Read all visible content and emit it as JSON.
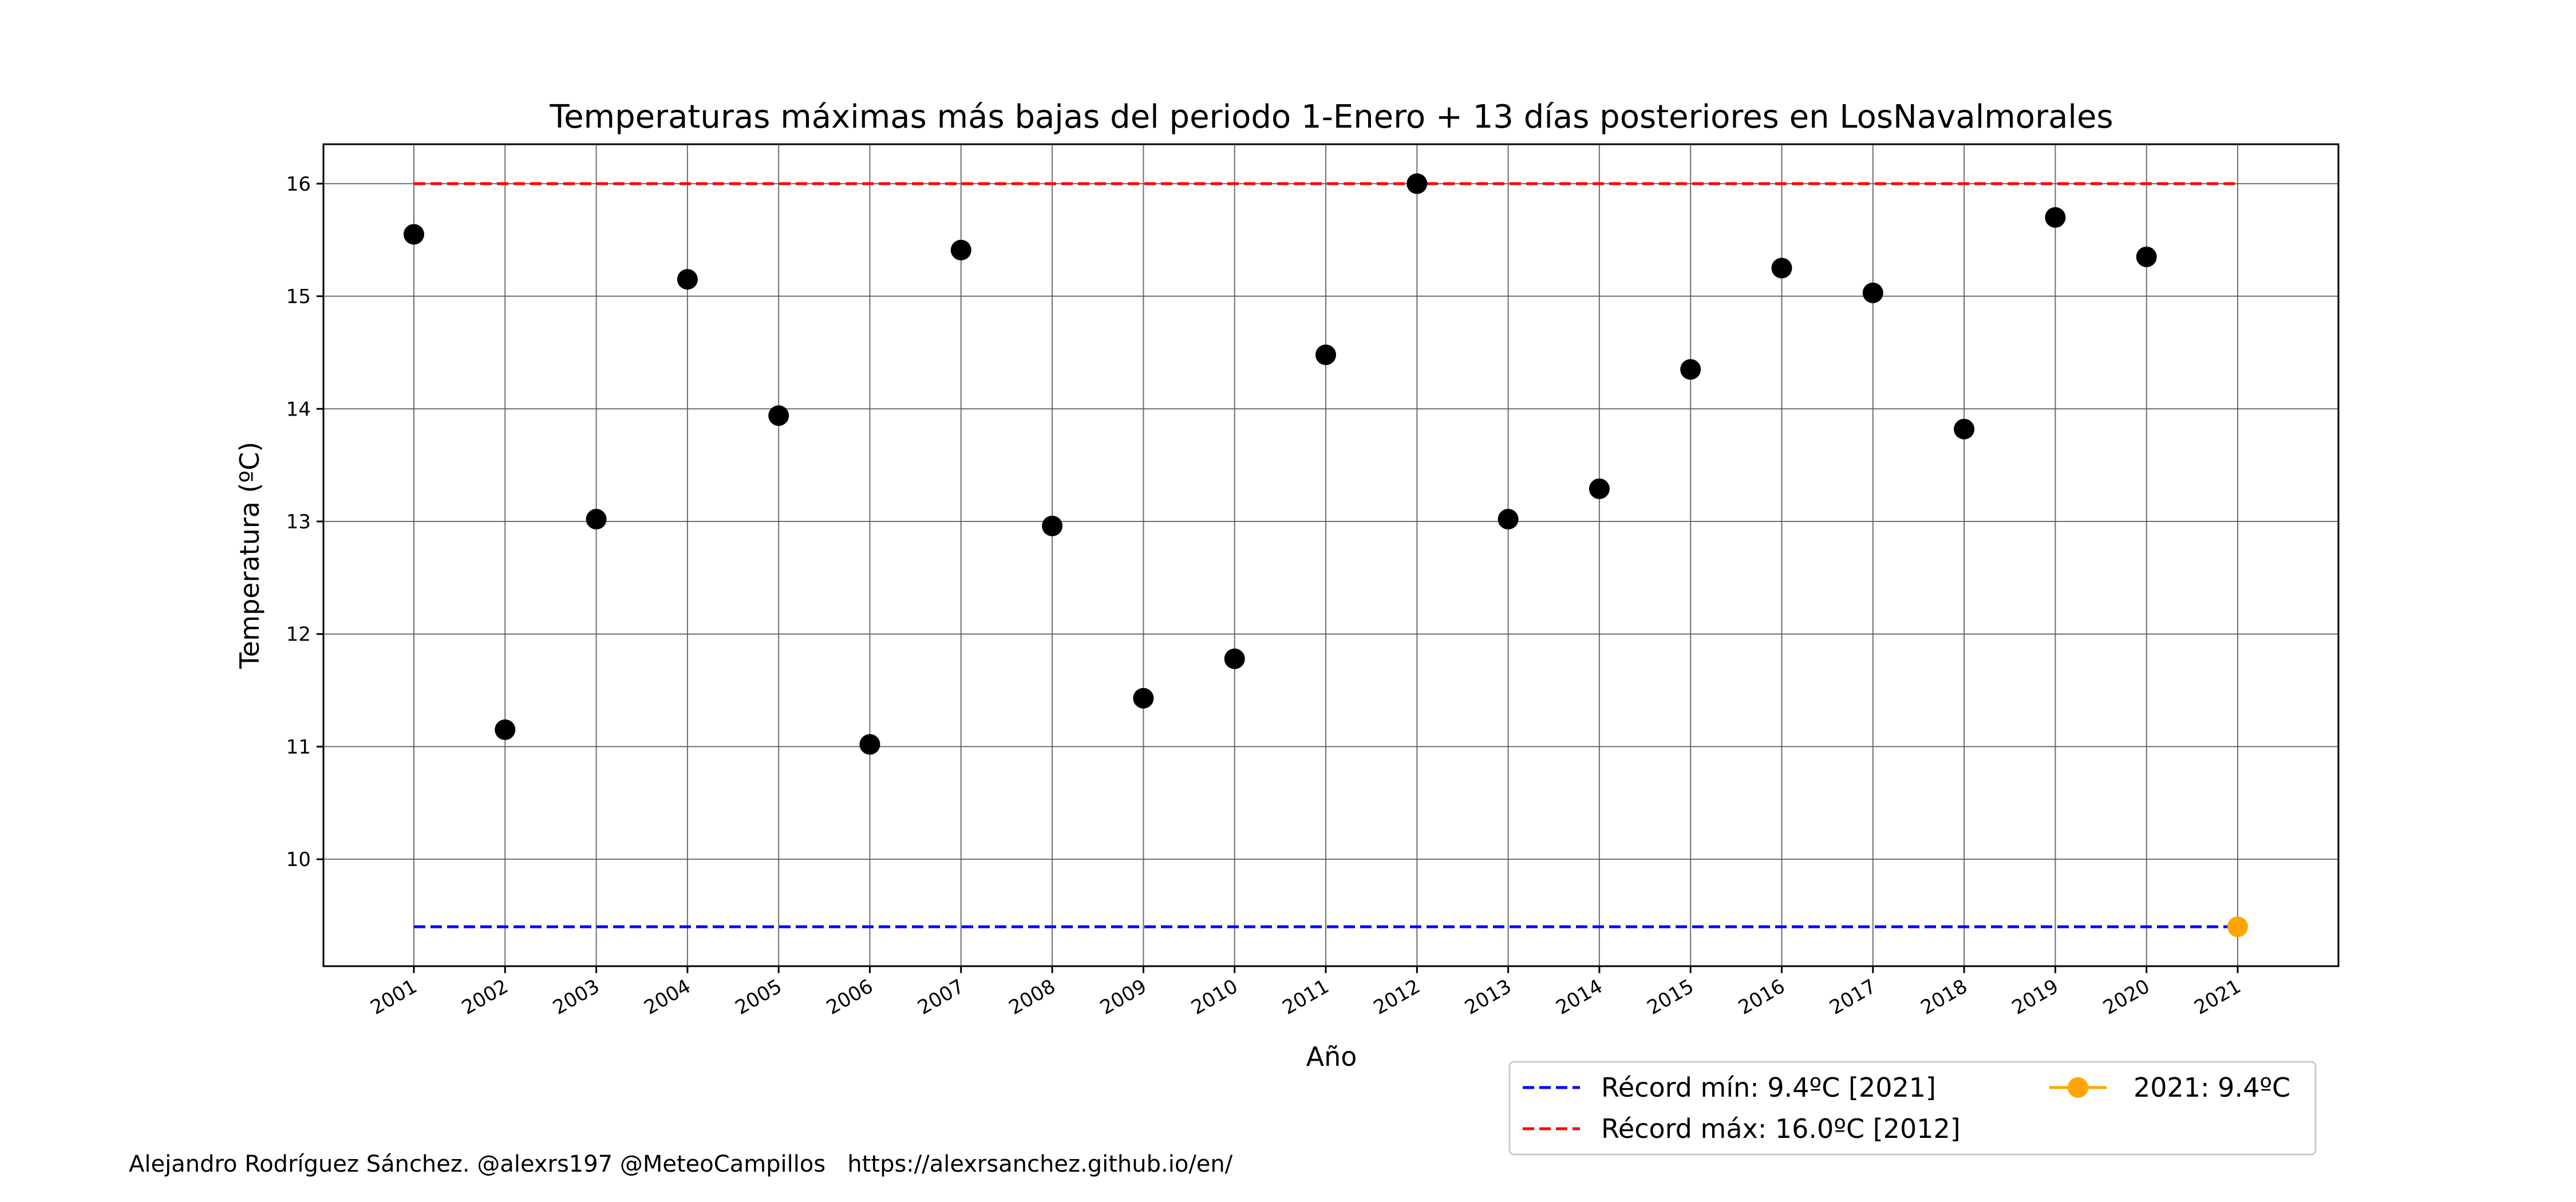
{
  "chart_data": {
    "type": "scatter",
    "title": "Temperaturas máximas más bajas del periodo 1-Enero + 13 días posteriores en LosNavalmorales",
    "xlabel": "Año",
    "ylabel": "Temperatura (ºC)",
    "x_ticks": [
      "2001",
      "2002",
      "2003",
      "2004",
      "2005",
      "2006",
      "2007",
      "2008",
      "2009",
      "2010",
      "2011",
      "2012",
      "2013",
      "2014",
      "2015",
      "2016",
      "2017",
      "2018",
      "2019",
      "2020",
      "2021"
    ],
    "y_ticks": [
      "10",
      "11",
      "12",
      "13",
      "14",
      "15",
      "16"
    ],
    "ylim": [
      9.05,
      16.35
    ],
    "grid": true,
    "series": [
      {
        "color": "#000000",
        "x": [
          "2001",
          "2002",
          "2003",
          "2004",
          "2005",
          "2006",
          "2007",
          "2008",
          "2009",
          "2010",
          "2011",
          "2012",
          "2013",
          "2014",
          "2015",
          "2016",
          "2017",
          "2018",
          "2019",
          "2020"
        ],
        "values": [
          15.55,
          11.15,
          13.02,
          15.15,
          13.94,
          11.02,
          15.41,
          12.96,
          11.43,
          11.78,
          14.48,
          16.0,
          13.02,
          13.29,
          14.35,
          15.25,
          15.03,
          13.82,
          15.7,
          15.35
        ]
      },
      {
        "name": "2021: 9.4ºC",
        "color": "#FFA500",
        "x": [
          "2021"
        ],
        "values": [
          9.4
        ]
      }
    ],
    "reference_lines": [
      {
        "name": "Récord mín: 9.4ºC [2021]",
        "value": 9.4,
        "color": "#0000FF",
        "style": "dashed"
      },
      {
        "name": "Récord máx: 16.0ºC [2012]",
        "value": 16.0,
        "color": "#FF0000",
        "style": "dashed"
      }
    ],
    "legend_position": "lower-right, below plot"
  },
  "credit": "Alejandro Rodríguez Sánchez. @alexrs197 @MeteoCampillos   https://alexrsanchez.github.io/en/"
}
